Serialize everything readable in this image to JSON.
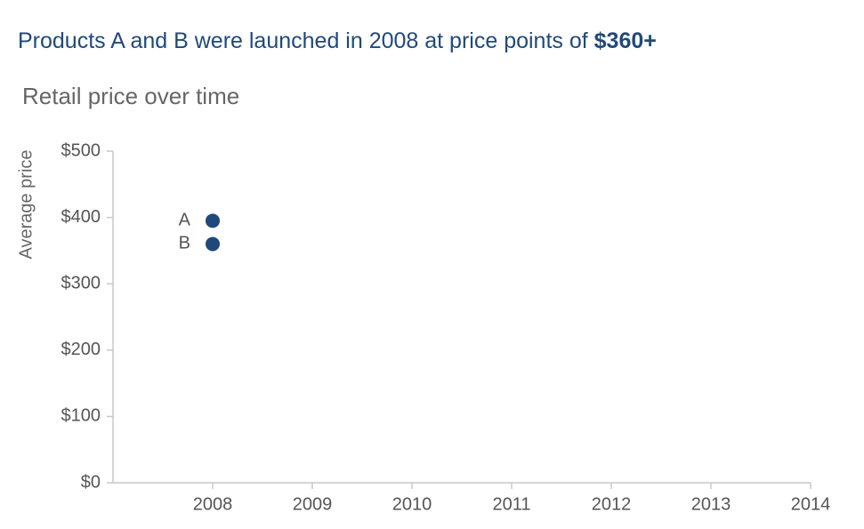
{
  "chart_data": {
    "type": "scatter",
    "title": [
      "Products A and B were launched in 2008 at price points of ",
      "$360+"
    ],
    "subtitle": "Retail price over time",
    "y_label": "Average price",
    "x": [
      2008
    ],
    "series": [
      {
        "name": "A",
        "color": "#1f497d",
        "values": [
          395
        ]
      },
      {
        "name": "B",
        "color": "#1f497d",
        "values": [
          360
        ]
      }
    ],
    "xlim": [
      2007,
      2014
    ],
    "xticks": [
      2008,
      2009,
      2010,
      2011,
      2012,
      2013,
      2014
    ],
    "ylim": [
      0,
      500
    ],
    "yticks": [
      {
        "value": 0,
        "label": "$0"
      },
      {
        "value": 100,
        "label": "$100"
      },
      {
        "value": 200,
        "label": "$200"
      },
      {
        "value": 300,
        "label": "$300"
      },
      {
        "value": 400,
        "label": "$400"
      },
      {
        "value": 500,
        "label": "$500"
      }
    ],
    "grid": false
  }
}
